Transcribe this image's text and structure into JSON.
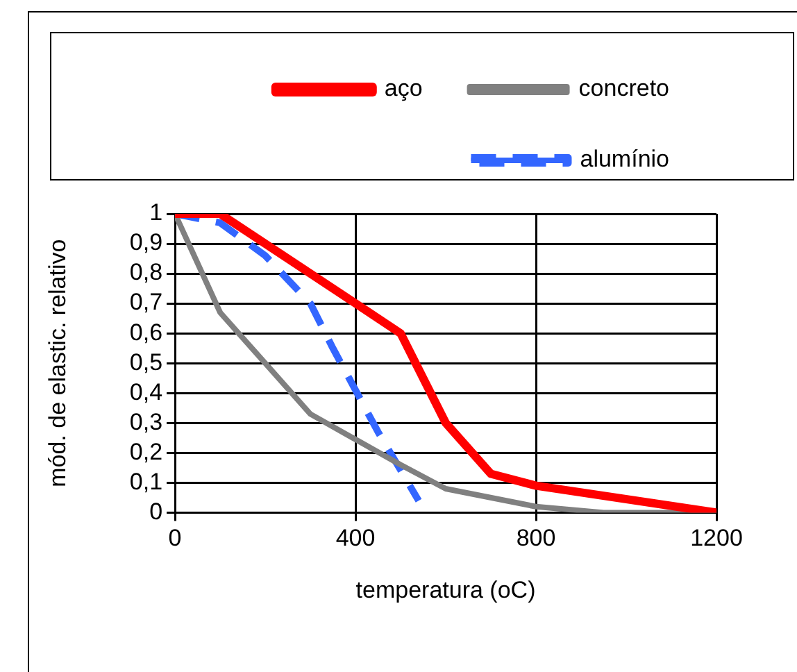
{
  "chart_data": {
    "type": "line",
    "xlabel": "temperatura (oC)",
    "ylabel": "mód. de elastic. relativo",
    "series": [
      {
        "name": "aço",
        "color": "#ff0000",
        "x": [
          0,
          100,
          400,
          500,
          600,
          700,
          800,
          1200
        ],
        "values": [
          1,
          1,
          0.7,
          0.6,
          0.3,
          0.13,
          0.09,
          0
        ]
      },
      {
        "name": "concreto",
        "color": "#808080",
        "x": [
          0,
          100,
          300,
          500,
          600,
          800,
          950,
          1200
        ],
        "values": [
          1,
          0.67,
          0.33,
          0.16,
          0.08,
          0.02,
          0,
          0
        ]
      },
      {
        "name": "alumínio",
        "color": "#3366ff",
        "line_style": "dashed",
        "x": [
          0,
          100,
          200,
          300,
          350,
          400,
          450,
          540
        ],
        "values": [
          1,
          0.97,
          0.86,
          0.7,
          0.55,
          0.41,
          0.27,
          0.04
        ]
      }
    ],
    "xlim": [
      0,
      1200
    ],
    "xticks": [
      0,
      400,
      800,
      1200
    ],
    "ylim": [
      0,
      1
    ],
    "yticks": [
      0,
      {
        "value": 0.1,
        "label": "0,1"
      },
      {
        "value": 0.2,
        "label": "0,2"
      },
      {
        "value": 0.3,
        "label": "0,3"
      },
      {
        "value": 0.4,
        "label": "0,4"
      },
      {
        "value": 0.5,
        "label": "0,5"
      },
      {
        "value": 0.6,
        "label": "0,6"
      },
      {
        "value": 0.7,
        "label": "0,7"
      },
      {
        "value": 0.8,
        "label": "0,8"
      },
      {
        "value": 0.9,
        "label": "0,9"
      },
      1
    ],
    "grid": true,
    "legend": "top",
    "marker": "none",
    "line_style": "solid"
  }
}
